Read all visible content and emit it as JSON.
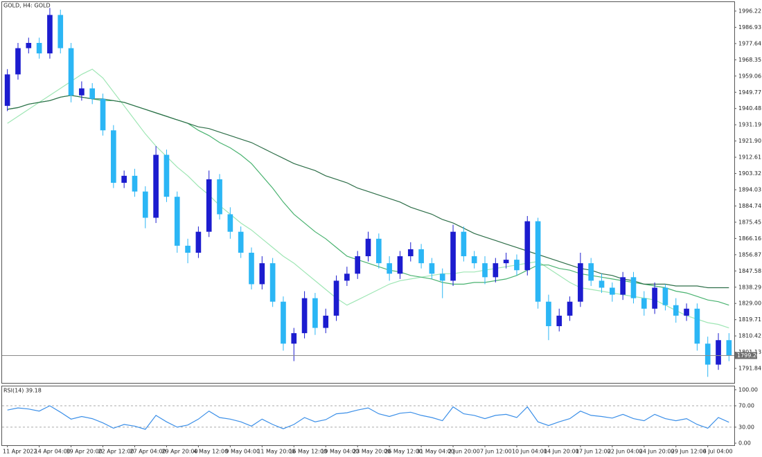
{
  "chart_data": [
    {
      "type": "candlestick",
      "title": "GOLD, H4:  GOLD",
      "categories": [
        "11 Apr 2022",
        null,
        null,
        "14 Apr 04:00",
        null,
        null,
        "19 Apr 20:00",
        null,
        null,
        "22 Apr 12:00",
        null,
        null,
        "27 Apr 04:00",
        null,
        null,
        "29 Apr 20:00",
        null,
        null,
        "4 May 12:00",
        null,
        null,
        "9 May 04:00",
        null,
        null,
        "11 May 20:00",
        null,
        null,
        "16 May 12:00",
        null,
        null,
        "19 May 04:00",
        null,
        null,
        "23 May 20:00",
        null,
        null,
        "26 May 12:00",
        null,
        null,
        "31 May 04:00",
        null,
        null,
        "2 Jun 20:00",
        null,
        null,
        "7 Jun 12:00",
        null,
        null,
        "10 Jun 04:00",
        null,
        null,
        "14 Jun 20:00",
        null,
        null,
        "17 Jun 12:00",
        null,
        null,
        "22 Jun 04:00",
        null,
        null,
        "24 Jun 20:00",
        null,
        null,
        "29 Jun 12:00",
        null,
        null,
        "4 Jul 04:00",
        null,
        null
      ],
      "open": [
        1942,
        1960,
        1975,
        1978,
        1972,
        1994,
        1975,
        1948,
        1952,
        1946,
        1928,
        1898,
        1902,
        1893,
        1878,
        1914,
        1890,
        1862,
        1858,
        1870,
        1900,
        1880,
        1870,
        1858,
        1840,
        1852,
        1830,
        1806,
        1812,
        1832,
        1815,
        1822,
        1842,
        1846,
        1856,
        1866,
        1852,
        1846,
        1856,
        1860,
        1852,
        1846,
        1842,
        1870,
        1856,
        1852,
        1844,
        1852,
        1854,
        1848,
        1876,
        1830,
        1816,
        1822,
        1830,
        1852,
        1842,
        1838,
        1834,
        1844,
        1832,
        1826,
        1838,
        1828,
        1822,
        1826,
        1806,
        1794,
        1808
      ],
      "high": [
        1963,
        1978,
        1981,
        1981,
        1998,
        1997,
        1978,
        1956,
        1955,
        1949,
        1931,
        1905,
        1906,
        1896,
        1919,
        1917,
        1893,
        1866,
        1873,
        1905,
        1903,
        1884,
        1873,
        1861,
        1856,
        1855,
        1833,
        1815,
        1836,
        1835,
        1826,
        1845,
        1850,
        1859,
        1870,
        1869,
        1856,
        1859,
        1864,
        1863,
        1855,
        1849,
        1874,
        1873,
        1859,
        1856,
        1855,
        1858,
        1857,
        1879,
        1878,
        1834,
        1826,
        1833,
        1858,
        1855,
        1846,
        1841,
        1847,
        1847,
        1836,
        1841,
        1840,
        1832,
        1829,
        1829,
        1810,
        1812,
        1812
      ],
      "low": [
        1939,
        1957,
        1972,
        1969,
        1969,
        1972,
        1944,
        1945,
        1943,
        1925,
        1895,
        1895,
        1890,
        1872,
        1875,
        1887,
        1858,
        1852,
        1855,
        1867,
        1877,
        1866,
        1855,
        1837,
        1837,
        1827,
        1802,
        1796,
        1809,
        1811,
        1812,
        1819,
        1839,
        1843,
        1853,
        1849,
        1842,
        1843,
        1853,
        1849,
        1843,
        1832,
        1839,
        1853,
        1849,
        1840,
        1841,
        1849,
        1845,
        1845,
        1826,
        1808,
        1813,
        1819,
        1827,
        1839,
        1835,
        1830,
        1831,
        1829,
        1822,
        1823,
        1825,
        1818,
        1819,
        1802,
        1787,
        1791,
        1796
      ],
      "close": [
        1960,
        1975,
        1978,
        1972,
        1994,
        1975,
        1948,
        1952,
        1946,
        1928,
        1898,
        1902,
        1893,
        1878,
        1914,
        1890,
        1862,
        1858,
        1870,
        1900,
        1880,
        1870,
        1858,
        1840,
        1852,
        1830,
        1806,
        1812,
        1832,
        1815,
        1822,
        1842,
        1846,
        1856,
        1866,
        1852,
        1846,
        1856,
        1860,
        1852,
        1846,
        1842,
        1870,
        1856,
        1852,
        1844,
        1852,
        1854,
        1848,
        1876,
        1830,
        1816,
        1822,
        1830,
        1852,
        1842,
        1838,
        1834,
        1844,
        1832,
        1826,
        1838,
        1828,
        1822,
        1826,
        1806,
        1794,
        1808,
        1799.2
      ],
      "up_color": "#1c1ccf",
      "down_color": "#2bb6f5",
      "series": [
        {
          "color": "#9ee6b4",
          "values": [
            1932,
            1936,
            1940,
            1944,
            1948,
            1952,
            1956,
            1960,
            1963,
            1958,
            1950,
            1942,
            1934,
            1926,
            1919,
            1913,
            1907,
            1902,
            1896,
            1891,
            1885,
            1880,
            1875,
            1871,
            1866,
            1861,
            1856,
            1852,
            1847,
            1842,
            1837,
            1832,
            1828,
            1831,
            1834,
            1837,
            1840,
            1842,
            1843,
            1844,
            1845,
            1846,
            1846,
            1847,
            1847,
            1848,
            1849,
            1850,
            1851,
            1852,
            1853,
            1849,
            1845,
            1841,
            1838,
            1837,
            1836,
            1835,
            1834,
            1833,
            1832,
            1831,
            1828,
            1825,
            1822,
            1820,
            1818,
            1817,
            1815
          ]
        },
        {
          "color": "#48b26f",
          "values": [
            1940,
            1941,
            1943,
            1944,
            1945,
            1947,
            1948,
            1947,
            1946,
            1945,
            1945,
            1944,
            1942,
            1940,
            1938,
            1936,
            1934,
            1932,
            1928,
            1925,
            1921,
            1918,
            1914,
            1909,
            1902,
            1895,
            1887,
            1880,
            1875,
            1870,
            1866,
            1861,
            1856,
            1854,
            1852,
            1850,
            1848,
            1847,
            1845,
            1844,
            1843,
            1841,
            1840,
            1840,
            1841,
            1841,
            1842,
            1843,
            1845,
            1848,
            1851,
            1851,
            1849,
            1848,
            1846,
            1845,
            1844,
            1843,
            1842,
            1841,
            1840,
            1839,
            1838,
            1836,
            1835,
            1833,
            1831,
            1830,
            1828
          ]
        },
        {
          "color": "#2d6e48",
          "values": [
            1940,
            1941,
            1943,
            1944,
            1945,
            1947,
            1948,
            1947,
            1946,
            1946,
            1945,
            1944,
            1942,
            1940,
            1938,
            1936,
            1934,
            1932,
            1930,
            1929,
            1927,
            1925,
            1923,
            1921,
            1918,
            1915,
            1912,
            1909,
            1907,
            1905,
            1902,
            1900,
            1898,
            1895,
            1893,
            1891,
            1889,
            1887,
            1884,
            1882,
            1880,
            1877,
            1875,
            1872,
            1869,
            1867,
            1865,
            1863,
            1861,
            1859,
            1857,
            1855,
            1853,
            1851,
            1849,
            1848,
            1846,
            1845,
            1843,
            1842,
            1840,
            1840,
            1840,
            1839,
            1839,
            1839,
            1838,
            1838,
            1838
          ]
        }
      ],
      "ylim": [
        1783.54,
        2001.36
      ],
      "yticks": [
        1996.22,
        1986.93,
        1977.64,
        1968.35,
        1959.06,
        1949.77,
        1940.48,
        1931.19,
        {
          "value": 1921.9,
          "label": "1921.90"
        },
        1912.61,
        1903.32,
        1894.03,
        1884.74,
        1875.45,
        1866.16,
        1856.87,
        1847.58,
        1838.29,
        {
          "value": 1829,
          "label": "1829.00"
        },
        1819.71,
        1810.42,
        1801.13,
        1791.84
      ],
      "current_price": {
        "value": 1799.2,
        "label": "1799.20"
      }
    },
    {
      "type": "line",
      "title": "RSI(14) 39.18",
      "series": [
        {
          "color": "#3b8fe8",
          "values": [
            62,
            66,
            64,
            60,
            70,
            58,
            45,
            50,
            46,
            38,
            28,
            35,
            32,
            26,
            52,
            40,
            30,
            34,
            45,
            60,
            48,
            45,
            40,
            32,
            45,
            35,
            27,
            35,
            48,
            40,
            44,
            55,
            57,
            62,
            66,
            55,
            50,
            56,
            58,
            52,
            48,
            42,
            68,
            55,
            52,
            46,
            52,
            54,
            48,
            68,
            40,
            33,
            40,
            46,
            60,
            52,
            50,
            47,
            54,
            46,
            42,
            54,
            46,
            42,
            46,
            35,
            28,
            48,
            39.18
          ]
        }
      ],
      "ylim": [
        -3.8,
        106.3
      ],
      "yticks": [
        {
          "value": 100,
          "label": "100.00"
        },
        {
          "value": 70,
          "label": "70.00"
        },
        {
          "value": 30,
          "label": "30.00"
        },
        {
          "value": 0,
          "label": "0.00"
        }
      ],
      "levels": [
        70,
        30
      ]
    }
  ]
}
